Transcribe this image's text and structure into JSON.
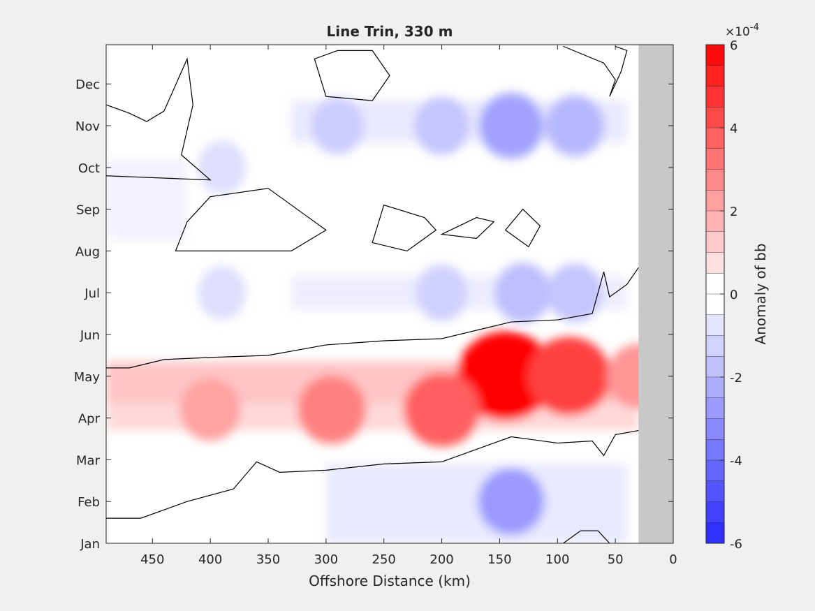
{
  "chart_data": {
    "type": "heatmap",
    "subtype": "filled-contour",
    "title": "Line Trin, 330 m",
    "xlabel": "Offshore Distance (km)",
    "ylabel": "",
    "x_axis_reversed": true,
    "xlim": [
      0,
      490
    ],
    "xticks": [
      450,
      400,
      350,
      300,
      250,
      200,
      150,
      100,
      50,
      0
    ],
    "y_categories": [
      "Jan",
      "Feb",
      "Mar",
      "Apr",
      "May",
      "Jun",
      "Jul",
      "Aug",
      "Sep",
      "Oct",
      "Nov",
      "Dec"
    ],
    "colorbar": {
      "label": "Anomaly of bb",
      "exponent_label": "×10",
      "exponent": "-4",
      "ticks": [
        6,
        4,
        2,
        0,
        -2,
        -4,
        -6
      ],
      "range": [
        -6,
        6
      ],
      "levels": 24
    },
    "zero_contour": true,
    "no_data_region": {
      "x_range_km": [
        0,
        30
      ],
      "color": "#c8c8c8"
    },
    "features": [
      {
        "month": "May",
        "x_km": 145,
        "value": 6.0
      },
      {
        "month": "May",
        "x_km": 90,
        "value": 4.5
      },
      {
        "month": "Apr",
        "x_km": 200,
        "value": 3.8
      },
      {
        "month": "Apr",
        "x_km": 295,
        "value": 3.0
      },
      {
        "month": "Apr",
        "x_km": 400,
        "value": 2.2
      },
      {
        "month": "May",
        "x_km": 30,
        "value": 2.5
      },
      {
        "month": "Feb",
        "x_km": 140,
        "value": -2.8
      },
      {
        "month": "Nov",
        "x_km": 140,
        "value": -2.6
      },
      {
        "month": "Nov",
        "x_km": 85,
        "value": -2.0
      },
      {
        "month": "Nov",
        "x_km": 200,
        "value": -1.6
      },
      {
        "month": "Nov",
        "x_km": 290,
        "value": -1.4
      },
      {
        "month": "Jul",
        "x_km": 130,
        "value": -1.8
      },
      {
        "month": "Jul",
        "x_km": 85,
        "value": -1.6
      },
      {
        "month": "Jul",
        "x_km": 200,
        "value": -1.3
      },
      {
        "month": "Jul",
        "x_km": 390,
        "value": -0.9
      },
      {
        "month": "Oct",
        "x_km": 390,
        "value": -0.9
      }
    ],
    "colors": {
      "positive": "#ff0000",
      "negative": "#0000ff",
      "background": "#ffffff"
    }
  }
}
